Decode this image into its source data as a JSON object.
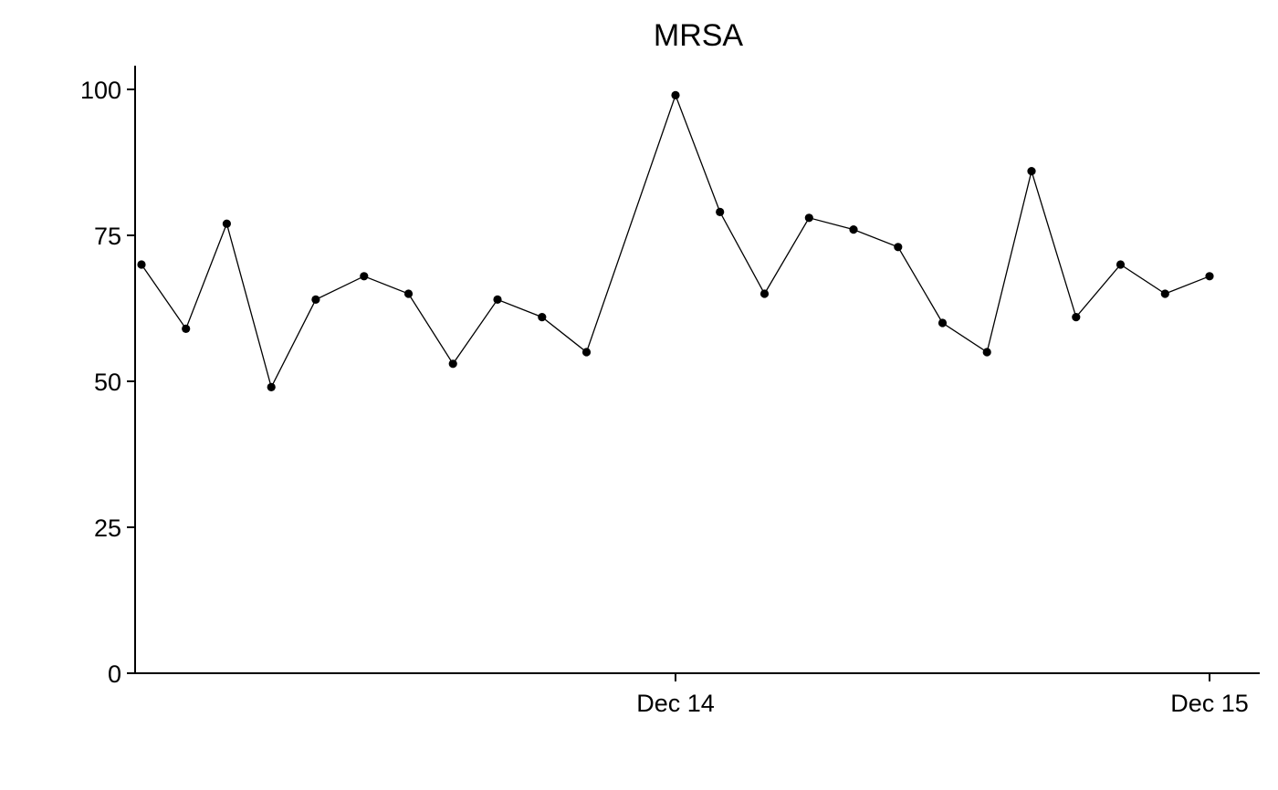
{
  "chart_data": {
    "type": "line",
    "title": "MRSA",
    "xlabel": "",
    "ylabel": "",
    "x": [
      0,
      0.0833,
      0.1597,
      0.2431,
      0.3264,
      0.4167,
      0.5,
      0.5833,
      0.6667,
      0.75,
      0.8333,
      1.0,
      1.0833,
      1.1667,
      1.25,
      1.3333,
      1.4167,
      1.5,
      1.5833,
      1.6667,
      1.75,
      1.8333,
      1.9167,
      2.0
    ],
    "values": [
      70,
      59,
      77,
      49,
      64,
      68,
      65,
      53,
      64,
      61,
      55,
      99,
      79,
      65,
      78,
      76,
      73,
      60,
      55,
      86,
      61,
      70,
      65,
      68
    ],
    "xlim": [
      -0.1,
      2.1
    ],
    "ylim": [
      0,
      100
    ],
    "x_ticks": [
      {
        "value": 1.0,
        "label": "Dec 14"
      },
      {
        "value": 2.0,
        "label": "Dec 15"
      }
    ],
    "y_ticks": [
      {
        "value": 0,
        "label": "0"
      },
      {
        "value": 25,
        "label": "25"
      },
      {
        "value": 50,
        "label": "50"
      },
      {
        "value": 75,
        "label": "75"
      },
      {
        "value": 100,
        "label": "100"
      }
    ],
    "grid": false,
    "legend": "none",
    "colors": {
      "line": "#000000",
      "point": "#000000",
      "axis": "#000000"
    }
  }
}
